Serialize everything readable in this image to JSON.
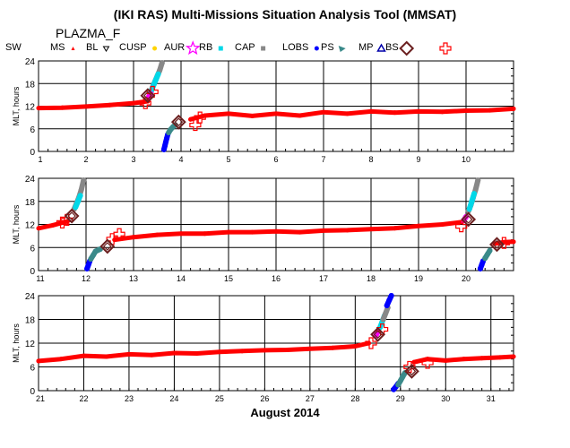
{
  "title": "(IKI RAS) Multi-Missions Situation Analysis Tool (MMSAT)",
  "mission": "PLAZMA_F",
  "xlabel": "August 2014",
  "legend": [
    {
      "label": "SW",
      "symbol": "none",
      "color": "#000000"
    },
    {
      "label": "MS",
      "symbol": "triangle-small",
      "color": "#ff0000"
    },
    {
      "label": "BL",
      "symbol": "triangle-down",
      "color": "#000000"
    },
    {
      "label": "CUSP",
      "symbol": "dot",
      "color": "#ffd400"
    },
    {
      "label": "AUR",
      "symbol": "star",
      "color": "#ff00ff"
    },
    {
      "label": "RB",
      "symbol": "square",
      "color": "#00d8e8"
    },
    {
      "label": "CAP",
      "symbol": "square",
      "color": "#888888"
    },
    {
      "label": "LOBS",
      "symbol": "dot",
      "color": "#0000ff"
    },
    {
      "label": "PS",
      "symbol": "wedge",
      "color": "#3a8a8a"
    },
    {
      "label": "MP",
      "symbol": "triangle-up",
      "color": "#0000aa"
    },
    {
      "label": "BS",
      "symbol": "diamond",
      "color": "#6b1f1f"
    },
    {
      "label": "",
      "symbol": "cross",
      "color": "#ff0000"
    }
  ],
  "chart_data": [
    {
      "type": "scatter",
      "ylabel": "MLT, hours",
      "xlim": [
        1,
        11
      ],
      "ylim": [
        0,
        24
      ],
      "xticks": [
        "1",
        "2",
        "3",
        "4",
        "5",
        "6",
        "7",
        "8",
        "9",
        "10"
      ],
      "yticks": [
        "0",
        "6",
        "12",
        "18",
        "24"
      ],
      "grid": true,
      "series": [
        {
          "region": "SW",
          "color": "#ff0000",
          "x": [
            1.0,
            1.5,
            2.0,
            2.5,
            3.0,
            3.3
          ],
          "y": [
            11.5,
            11.6,
            11.9,
            12.3,
            12.8,
            13.3
          ]
        },
        {
          "region": "CAP",
          "color": "#888888",
          "x": [
            3.36,
            3.4,
            3.45,
            3.5,
            3.55,
            3.6
          ],
          "y": [
            15.5,
            17.0,
            18.5,
            20.0,
            21.5,
            23.5
          ]
        },
        {
          "region": "RB",
          "color": "#00d8e8",
          "x": [
            3.37,
            3.42,
            3.47,
            3.52
          ],
          "y": [
            16.0,
            17.5,
            19.0,
            20.5
          ]
        },
        {
          "region": "AUR",
          "color": "#ff00ff",
          "x": [
            3.32,
            3.36
          ],
          "y": [
            14.5,
            15.3
          ]
        },
        {
          "region": "LOBS",
          "color": "#0000ff",
          "x": [
            3.64,
            3.66,
            3.68,
            3.7,
            3.72
          ],
          "y": [
            0.5,
            1.5,
            2.5,
            3.5,
            4.5
          ]
        },
        {
          "region": "PS",
          "color": "#3a8a8a",
          "x": [
            3.74,
            3.78,
            3.83,
            3.88
          ],
          "y": [
            5.0,
            5.8,
            6.5,
            7.0
          ]
        },
        {
          "region": "SW",
          "color": "#ff0000",
          "x": [
            4.2,
            4.5,
            5.0,
            5.5,
            6.0,
            6.5,
            7.0,
            7.5,
            8.0,
            8.5,
            9.0,
            9.5,
            10.0,
            10.5,
            11.0
          ],
          "y": [
            8.5,
            9.5,
            10.0,
            9.4,
            10.0,
            9.5,
            10.4,
            10.0,
            10.6,
            10.3,
            10.6,
            10.5,
            10.8,
            10.9,
            11.3
          ]
        }
      ],
      "bow_shock": {
        "x": [
          3.3,
          3.95
        ],
        "y": [
          14.8,
          7.8
        ]
      },
      "crossings": {
        "x": [
          3.25,
          3.4,
          4.3,
          4.4
        ],
        "y": [
          12.8,
          15.8,
          7.0,
          9.0
        ]
      }
    },
    {
      "type": "scatter",
      "ylabel": "MLT, hours",
      "xlim": [
        11,
        21
      ],
      "ylim": [
        0,
        24
      ],
      "xticks": [
        "11",
        "12",
        "13",
        "14",
        "15",
        "16",
        "17",
        "18",
        "19",
        "20"
      ],
      "yticks": [
        "0",
        "6",
        "12",
        "18",
        "24"
      ],
      "grid": true,
      "series": [
        {
          "region": "SW",
          "color": "#ff0000",
          "x": [
            11.0,
            11.3,
            11.6
          ],
          "y": [
            11.0,
            11.8,
            12.8
          ]
        },
        {
          "region": "CAP",
          "color": "#888888",
          "x": [
            11.75,
            11.8,
            11.85,
            11.9,
            11.95
          ],
          "y": [
            16.0,
            17.5,
            19.0,
            21.0,
            23.5
          ]
        },
        {
          "region": "RB",
          "color": "#00d8e8",
          "x": [
            11.78,
            11.83,
            11.88
          ],
          "y": [
            16.5,
            18.0,
            19.5
          ]
        },
        {
          "region": "LOBS",
          "color": "#0000ff",
          "x": [
            12.02,
            12.05,
            12.08
          ],
          "y": [
            0.5,
            1.5,
            2.5
          ]
        },
        {
          "region": "PS",
          "color": "#3a8a8a",
          "x": [
            12.1,
            12.15,
            12.2,
            12.3
          ],
          "y": [
            3.0,
            4.0,
            5.0,
            5.6
          ]
        },
        {
          "region": "SW",
          "color": "#ff0000",
          "x": [
            12.6,
            13.0,
            13.5,
            14.0,
            14.5,
            15.0,
            15.5,
            16.0,
            16.5,
            17.0,
            17.5,
            18.0,
            18.5,
            19.0,
            19.5,
            19.9
          ],
          "y": [
            8.0,
            8.7,
            9.3,
            9.6,
            9.6,
            10.0,
            10.0,
            10.2,
            10.0,
            10.4,
            10.5,
            10.8,
            11.0,
            11.6,
            12.0,
            12.6
          ]
        },
        {
          "region": "AUR",
          "color": "#ff00ff",
          "x": [
            19.95,
            20.0
          ],
          "y": [
            13.0,
            14.0
          ]
        },
        {
          "region": "CAP",
          "color": "#888888",
          "x": [
            20.05,
            20.1,
            20.15,
            20.2,
            20.25
          ],
          "y": [
            15.5,
            17.0,
            19.0,
            21.0,
            23.5
          ]
        },
        {
          "region": "RB",
          "color": "#00d8e8",
          "x": [
            20.07,
            20.12,
            20.17
          ],
          "y": [
            16.0,
            18.0,
            20.0
          ]
        },
        {
          "region": "LOBS",
          "color": "#0000ff",
          "x": [
            20.3,
            20.33,
            20.36
          ],
          "y": [
            0.5,
            1.5,
            2.5
          ]
        },
        {
          "region": "PS",
          "color": "#3a8a8a",
          "x": [
            20.4,
            20.45,
            20.5
          ],
          "y": [
            3.2,
            4.2,
            5.2
          ]
        },
        {
          "region": "SW",
          "color": "#ff0000",
          "x": [
            20.6,
            20.8,
            21.0
          ],
          "y": [
            7.0,
            7.4,
            7.5
          ]
        }
      ],
      "bow_shock": {
        "x": [
          11.7,
          12.45,
          20.05,
          20.65
        ],
        "y": [
          14.2,
          6.3,
          13.3,
          6.8
        ]
      },
      "crossings": {
        "x": [
          11.5,
          11.6,
          12.55,
          12.7,
          19.9,
          20.8
        ],
        "y": [
          12.5,
          13.2,
          8.2,
          9.5,
          11.5,
          7.2
        ]
      }
    },
    {
      "type": "scatter",
      "ylabel": "MLT, hours",
      "xlim": [
        21,
        31.5
      ],
      "ylim": [
        0,
        24
      ],
      "xticks": [
        "21",
        "22",
        "23",
        "24",
        "25",
        "26",
        "27",
        "28",
        "29",
        "30",
        "31"
      ],
      "yticks": [
        "0",
        "6",
        "12",
        "18",
        "24"
      ],
      "grid": true,
      "series": [
        {
          "region": "SW",
          "color": "#ff0000",
          "x": [
            21.0,
            21.5,
            22.0,
            22.5,
            23.0,
            23.5,
            24.0,
            24.5,
            25.0,
            25.5,
            26.0,
            26.5,
            27.0,
            27.5,
            28.0,
            28.3
          ],
          "y": [
            7.5,
            8.0,
            8.8,
            8.6,
            9.2,
            9.0,
            9.5,
            9.4,
            9.8,
            10.0,
            10.2,
            10.3,
            10.6,
            10.8,
            11.2,
            12.0
          ]
        },
        {
          "region": "AUR",
          "color": "#ff00ff",
          "x": [
            28.45,
            28.5
          ],
          "y": [
            13.8,
            14.8
          ]
        },
        {
          "region": "RB",
          "color": "#00d8e8",
          "x": [
            28.55,
            28.6,
            28.65
          ],
          "y": [
            16.0,
            17.5,
            19.0
          ]
        },
        {
          "region": "CAP",
          "color": "#888888",
          "x": [
            28.62,
            28.67,
            28.72
          ],
          "y": [
            18.0,
            19.5,
            21.0
          ]
        },
        {
          "region": "LOBS",
          "color": "#0000ff",
          "x": [
            28.7,
            28.75,
            28.8
          ],
          "y": [
            21.5,
            22.8,
            24.0
          ]
        },
        {
          "region": "LOBS",
          "color": "#0000ff",
          "x": [
            28.85,
            28.9,
            28.95
          ],
          "y": [
            0.3,
            1.0,
            1.8
          ]
        },
        {
          "region": "PS",
          "color": "#3a8a8a",
          "x": [
            28.95,
            29.0,
            29.05,
            29.1
          ],
          "y": [
            1.5,
            2.5,
            3.5,
            4.5
          ]
        },
        {
          "region": "SW",
          "color": "#ff0000",
          "x": [
            29.3,
            29.6,
            30.0,
            30.4,
            30.8,
            31.2,
            31.5
          ],
          "y": [
            7.2,
            8.0,
            7.6,
            8.0,
            8.2,
            8.4,
            8.6
          ]
        }
      ],
      "bow_shock": {
        "x": [
          28.5,
          29.25
        ],
        "y": [
          14.2,
          4.9
        ]
      },
      "crossings": {
        "x": [
          28.35,
          28.6,
          29.2,
          29.6
        ],
        "y": [
          12.0,
          15.5,
          6.0,
          7.0
        ]
      }
    }
  ]
}
